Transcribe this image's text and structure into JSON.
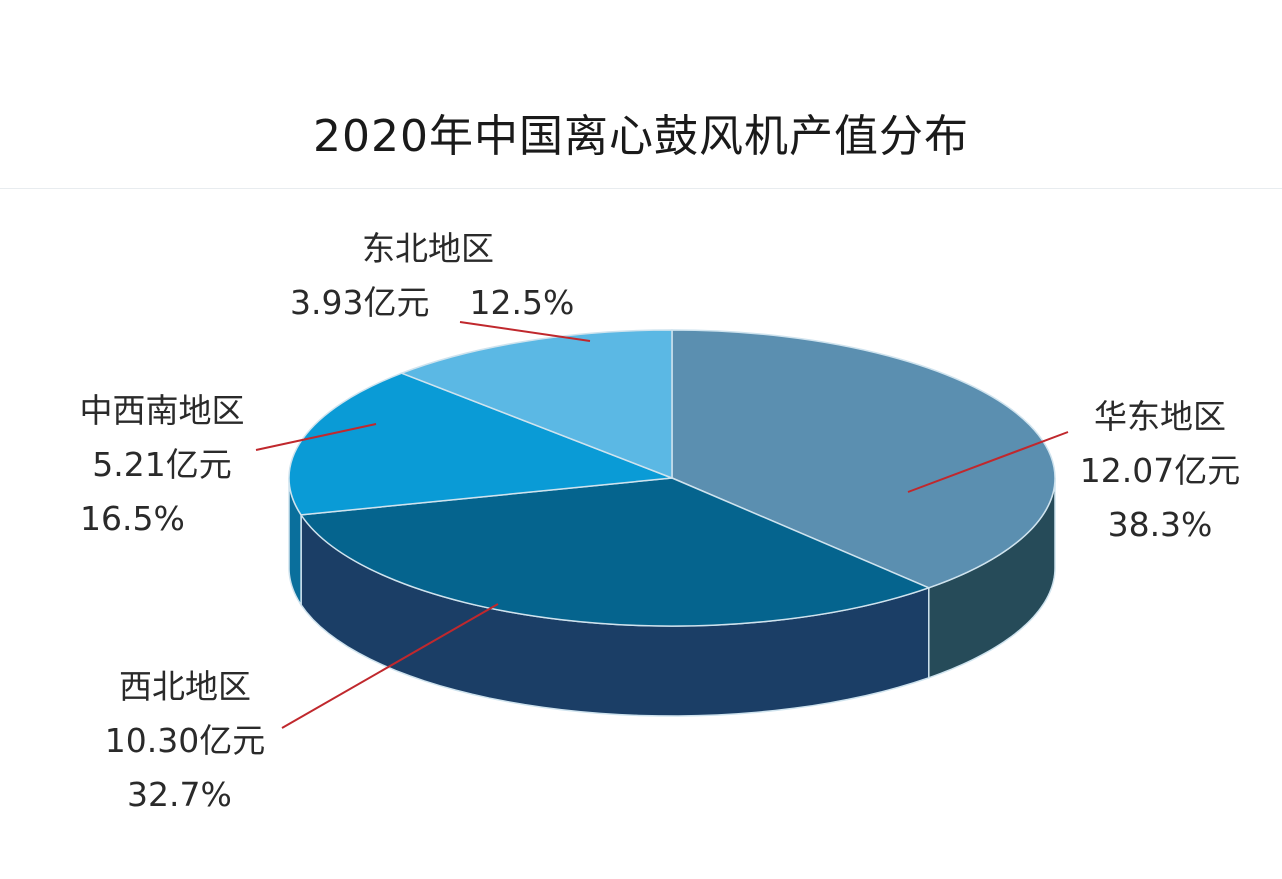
{
  "chart_data": {
    "type": "pie",
    "style": "3d",
    "title": "2020年中国离心鼓风机产值分布",
    "unit": "亿元",
    "slices": [
      {
        "label": "华东地区",
        "value": 12.07,
        "value_text": "12.07亿元",
        "percent": 38.3,
        "percent_text": "38.3%",
        "color": "#5b8fb0",
        "side_color": "#264b59"
      },
      {
        "label": "西北地区",
        "value": 10.3,
        "value_text": "10.30亿元",
        "percent": 32.7,
        "percent_text": "32.7%",
        "color": "#05648e",
        "side_color": "#1b3e66"
      },
      {
        "label": "中西南地区",
        "value": 5.21,
        "value_text": "5.21亿元",
        "percent": 16.5,
        "percent_text": "16.5%",
        "color": "#0a9bd6",
        "side_color": "#0a6f9c"
      },
      {
        "label": "东北地区",
        "value": 3.93,
        "value_text": "3.93亿元",
        "percent": 12.5,
        "percent_text": "12.5%",
        "color": "#5bb8e4",
        "side_color": "#3d8cb5"
      }
    ],
    "start": "12 o'clock",
    "direction": "clockwise",
    "leader_line_color": "#c0282d"
  }
}
